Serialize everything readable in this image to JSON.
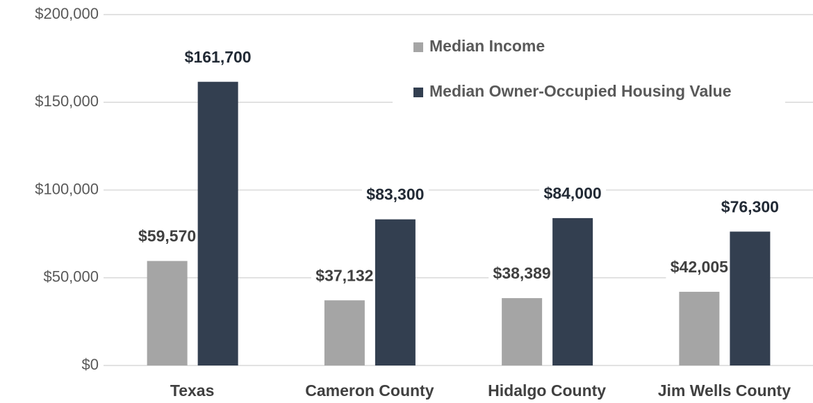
{
  "chart_data": {
    "type": "bar",
    "categories": [
      "Texas",
      "Cameron County",
      "Hidalgo County",
      "Jim Wells County"
    ],
    "series": [
      {
        "name": "Median Income",
        "color": "#a5a5a5",
        "values": [
          59570,
          37132,
          38389,
          42005
        ],
        "value_labels": [
          "$59,570",
          "$37,132",
          "$38,389",
          "$42,005"
        ]
      },
      {
        "name": "Median Owner-Occupied Housing Value",
        "color": "#333f50",
        "values": [
          161700,
          83300,
          84000,
          76300
        ],
        "value_labels": [
          "$161,700",
          "$83,300",
          "$84,000",
          "$76,300"
        ]
      }
    ],
    "ylim": [
      0,
      200000
    ],
    "yticks": [
      {
        "value": 0,
        "label": "$0"
      },
      {
        "value": 50000,
        "label": "$50,000"
      },
      {
        "value": 100000,
        "label": "$100,000"
      },
      {
        "value": 150000,
        "label": "$150,000"
      },
      {
        "value": 200000,
        "label": "$200,000"
      }
    ],
    "grid": true,
    "legend": "upper right"
  }
}
